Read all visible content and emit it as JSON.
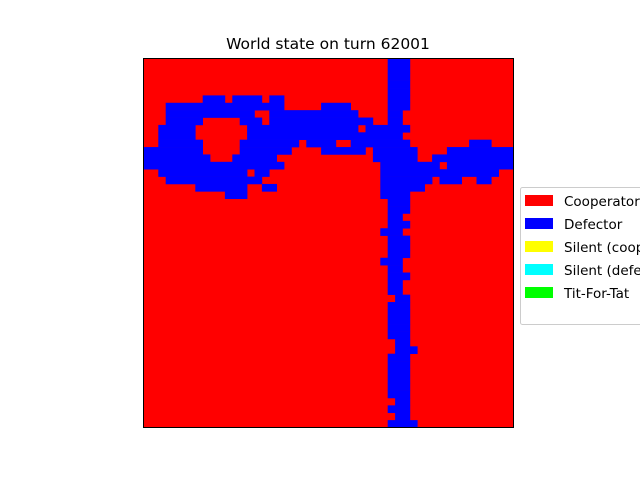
{
  "chart_data": {
    "type": "heatmap",
    "title": "World state on turn 62001",
    "xlabel": "",
    "ylabel": "",
    "grid_cols": 50,
    "grid_rows": 50,
    "axis_ticks": false,
    "legend_position": "right",
    "background_state": "Cooperator",
    "legend": [
      {
        "label": "Cooperator",
        "color": "#ff0000"
      },
      {
        "label": "Defector",
        "color": "#0000ff"
      },
      {
        "label": "Silent (cooperator)",
        "color": "#ffff00"
      },
      {
        "label": "Silent (defector)",
        "color": "#00ffff"
      },
      {
        "label": "Tit-For-Tat",
        "color": "#00ff00"
      }
    ],
    "defector_runs": [
      [
        0,
        33,
        36
      ],
      [
        1,
        33,
        36
      ],
      [
        2,
        33,
        36
      ],
      [
        3,
        33,
        36
      ],
      [
        4,
        33,
        36
      ],
      [
        5,
        8,
        11
      ],
      [
        5,
        12,
        16
      ],
      [
        5,
        17,
        19
      ],
      [
        5,
        33,
        36
      ],
      [
        6,
        3,
        19
      ],
      [
        6,
        24,
        28
      ],
      [
        6,
        33,
        36
      ],
      [
        7,
        3,
        15
      ],
      [
        7,
        17,
        29
      ],
      [
        7,
        33,
        35
      ],
      [
        8,
        3,
        8
      ],
      [
        8,
        13,
        16
      ],
      [
        8,
        17,
        31
      ],
      [
        8,
        33,
        35
      ],
      [
        9,
        2,
        7
      ],
      [
        9,
        14,
        29
      ],
      [
        9,
        30,
        36
      ],
      [
        10,
        2,
        7
      ],
      [
        10,
        14,
        35
      ],
      [
        11,
        2,
        8
      ],
      [
        11,
        13,
        21
      ],
      [
        11,
        22,
        26
      ],
      [
        11,
        28,
        36
      ],
      [
        11,
        44,
        47
      ],
      [
        12,
        0,
        8
      ],
      [
        12,
        13,
        20
      ],
      [
        12,
        24,
        30
      ],
      [
        12,
        31,
        37
      ],
      [
        12,
        41,
        46
      ],
      [
        12,
        46,
        50
      ],
      [
        13,
        0,
        9
      ],
      [
        13,
        12,
        18
      ],
      [
        13,
        31,
        37
      ],
      [
        13,
        39,
        50
      ],
      [
        14,
        0,
        19
      ],
      [
        14,
        32,
        40
      ],
      [
        14,
        41,
        50
      ],
      [
        15,
        2,
        14
      ],
      [
        15,
        15,
        17
      ],
      [
        15,
        32,
        48
      ],
      [
        16,
        3,
        16
      ],
      [
        16,
        32,
        39
      ],
      [
        16,
        40,
        43
      ],
      [
        16,
        45,
        47
      ],
      [
        17,
        7,
        14
      ],
      [
        17,
        16,
        18
      ],
      [
        17,
        32,
        38
      ],
      [
        18,
        11,
        14
      ],
      [
        18,
        32,
        36
      ],
      [
        19,
        33,
        36
      ],
      [
        20,
        33,
        36
      ],
      [
        21,
        33,
        35
      ],
      [
        22,
        33,
        36
      ],
      [
        23,
        32,
        35
      ],
      [
        24,
        33,
        36
      ],
      [
        25,
        33,
        36
      ],
      [
        26,
        33,
        36
      ],
      [
        27,
        32,
        35
      ],
      [
        28,
        33,
        35
      ],
      [
        29,
        33,
        36
      ],
      [
        30,
        33,
        35
      ],
      [
        31,
        33,
        35
      ],
      [
        32,
        34,
        36
      ],
      [
        33,
        33,
        36
      ],
      [
        34,
        33,
        36
      ],
      [
        35,
        33,
        36
      ],
      [
        36,
        33,
        36
      ],
      [
        37,
        33,
        36
      ],
      [
        38,
        34,
        36
      ],
      [
        39,
        34,
        37
      ],
      [
        40,
        33,
        36
      ],
      [
        41,
        33,
        36
      ],
      [
        42,
        33,
        36
      ],
      [
        43,
        33,
        36
      ],
      [
        44,
        33,
        36
      ],
      [
        45,
        33,
        36
      ],
      [
        46,
        34,
        36
      ],
      [
        47,
        33,
        36
      ],
      [
        48,
        34,
        36
      ],
      [
        49,
        33,
        37
      ]
    ]
  }
}
